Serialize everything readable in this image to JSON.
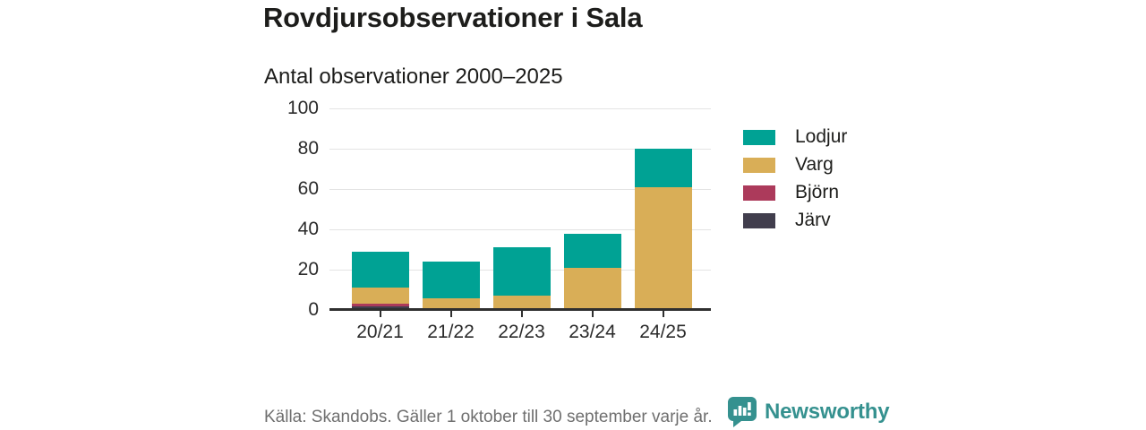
{
  "header": {
    "title": "Rovdjursobservationer i Sala",
    "subtitle": "Antal observationer 2000–2025"
  },
  "chart_data": {
    "type": "bar",
    "stacked": true,
    "title": "Rovdjursobservationer i Sala",
    "subtitle": "Antal observationer 2000–2025",
    "categories": [
      "20/21",
      "21/22",
      "22/23",
      "23/24",
      "24/25"
    ],
    "series": [
      {
        "name": "Lodjur",
        "color": "#00A294",
        "values": [
          18,
          18,
          24,
          17,
          19
        ]
      },
      {
        "name": "Varg",
        "color": "#D9AE57",
        "values": [
          8,
          6,
          6,
          20,
          60
        ]
      },
      {
        "name": "Björn",
        "color": "#AC3A5B",
        "values": [
          1,
          0,
          1,
          1,
          1
        ]
      },
      {
        "name": "Järv",
        "color": "#413E4D",
        "values": [
          2,
          0,
          0,
          0,
          0
        ]
      }
    ],
    "stack_order_bottom_to_top": [
      "Järv",
      "Björn",
      "Varg",
      "Lodjur"
    ],
    "stack_totals": [
      29,
      24,
      31,
      38,
      80
    ],
    "xlabel": "",
    "ylabel": "",
    "ylim": [
      0,
      100
    ],
    "yticks": [
      0,
      20,
      40,
      60,
      80,
      100
    ],
    "grid": "horizontal",
    "legend_position": "right",
    "legend_order": [
      "Lodjur",
      "Varg",
      "Björn",
      "Järv"
    ]
  },
  "footer": {
    "source": "Källa: Skandobs. Gäller 1 oktober till 30 september varje år.",
    "brand": "Newsworthy"
  },
  "colors": {
    "lodjur": "#00A294",
    "varg": "#D9AE57",
    "bjorn": "#AC3A5B",
    "jarv": "#413E4D",
    "axis": "#2F2F2F",
    "grid": "#E3E3E3",
    "title_text": "#1D1D1B",
    "muted_text": "#6F6F6F",
    "brand_teal": "#35918F"
  }
}
